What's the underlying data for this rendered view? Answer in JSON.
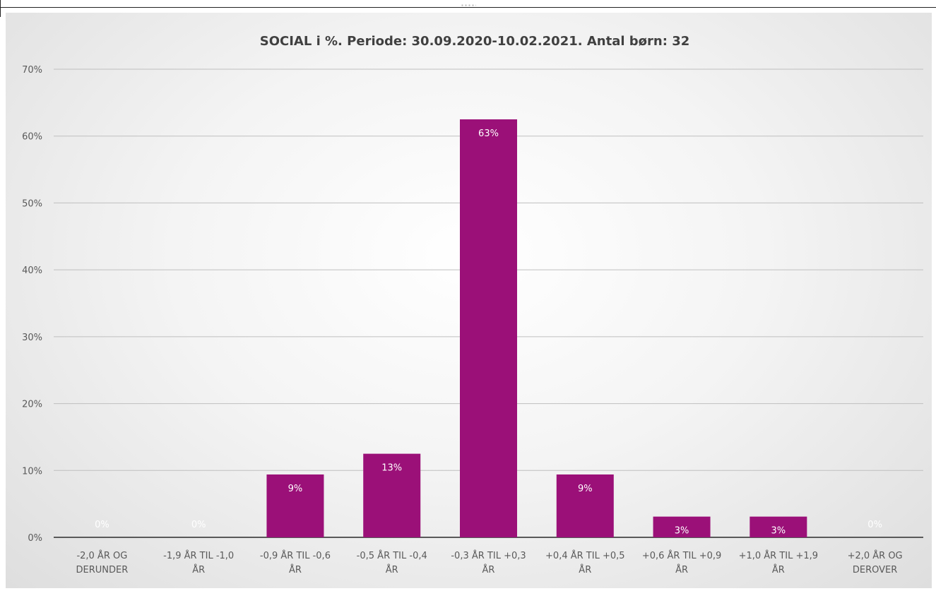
{
  "chart_data": {
    "type": "bar",
    "title": "SOCIAL i %. Periode: 30.09.2020-10.02.2021. Antal børn: 32",
    "xlabel": "",
    "ylabel": "",
    "categories": [
      [
        "-2,0 ÅR OG",
        "DERUNDER"
      ],
      [
        "-1,9 ÅR TIL -1,0",
        "ÅR"
      ],
      [
        "-0,9 ÅR TIL -0,6",
        "ÅR"
      ],
      [
        "-0,5 ÅR TIL -0,4",
        "ÅR"
      ],
      [
        "-0,3 ÅR TIL +0,3",
        "ÅR"
      ],
      [
        "+0,4 ÅR TIL +0,5",
        "ÅR"
      ],
      [
        "+0,6 ÅR TIL +0,9",
        "ÅR"
      ],
      [
        "+1,0 ÅR TIL +1,9",
        "ÅR"
      ],
      [
        "+2,0 ÅR OG",
        "DEROVER"
      ]
    ],
    "values": [
      0,
      0,
      9.4,
      12.5,
      62.5,
      9.4,
      3.1,
      3.1,
      0
    ],
    "data_labels": [
      "0%",
      "0%",
      "9%",
      "13%",
      "63%",
      "9%",
      "3%",
      "3%",
      "0%"
    ],
    "yticks": [
      "0%",
      "10%",
      "20%",
      "30%",
      "40%",
      "50%",
      "60%",
      "70%"
    ],
    "ylim": [
      0,
      70
    ],
    "grid": true,
    "legend": "none",
    "colors": {
      "bar": "#9b1078",
      "label_text": "#ffffff",
      "axis_text": "#595959",
      "title_text": "#404040",
      "gridline": "#bfbfbf",
      "baseline": "#595959"
    }
  }
}
